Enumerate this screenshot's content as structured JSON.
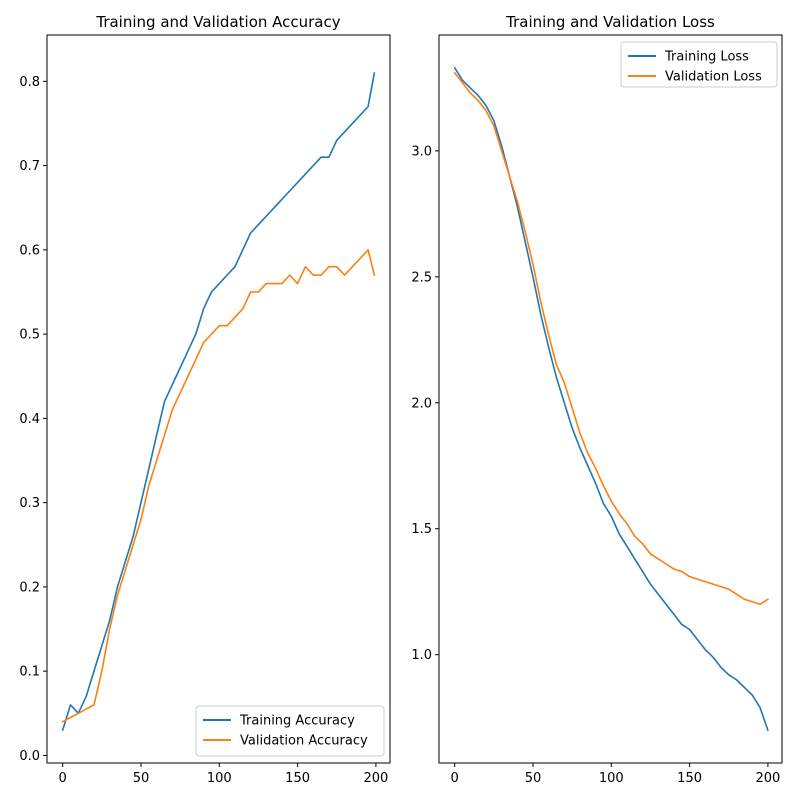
{
  "chart_data": [
    {
      "type": "line",
      "title": "Training and Validation Accuracy",
      "xlabel": "",
      "ylabel": "",
      "xlim": [
        -10,
        209
      ],
      "ylim": [
        -0.009,
        0.855
      ],
      "xticks": [
        0,
        50,
        100,
        150,
        200
      ],
      "yticks": [
        0.0,
        0.1,
        0.2,
        0.3,
        0.4,
        0.5,
        0.6,
        0.7,
        0.8
      ],
      "ytick_format": "1",
      "legend": "lower-right",
      "grid": false,
      "series": [
        {
          "name": "Training Accuracy",
          "color": "#1f77b4",
          "x": [
            0,
            5,
            10,
            15,
            20,
            25,
            30,
            35,
            40,
            45,
            50,
            55,
            60,
            65,
            70,
            75,
            80,
            85,
            90,
            95,
            100,
            105,
            110,
            115,
            120,
            125,
            130,
            135,
            140,
            145,
            150,
            155,
            160,
            165,
            170,
            175,
            180,
            185,
            190,
            195,
            199
          ],
          "y": [
            0.03,
            0.06,
            0.05,
            0.07,
            0.1,
            0.13,
            0.16,
            0.2,
            0.23,
            0.26,
            0.3,
            0.34,
            0.38,
            0.42,
            0.44,
            0.46,
            0.48,
            0.5,
            0.53,
            0.55,
            0.56,
            0.57,
            0.58,
            0.6,
            0.62,
            0.63,
            0.64,
            0.65,
            0.66,
            0.67,
            0.68,
            0.69,
            0.7,
            0.71,
            0.71,
            0.73,
            0.74,
            0.75,
            0.76,
            0.77,
            0.81
          ]
        },
        {
          "name": "Validation Accuracy",
          "color": "#ff7f0e",
          "x": [
            0,
            5,
            10,
            15,
            20,
            25,
            30,
            35,
            40,
            45,
            50,
            55,
            60,
            65,
            70,
            75,
            80,
            85,
            90,
            95,
            100,
            105,
            110,
            115,
            120,
            125,
            130,
            135,
            140,
            145,
            150,
            155,
            160,
            165,
            170,
            175,
            180,
            185,
            190,
            195,
            199
          ],
          "y": [
            0.04,
            0.045,
            0.05,
            0.055,
            0.06,
            0.1,
            0.15,
            0.19,
            0.22,
            0.25,
            0.28,
            0.32,
            0.35,
            0.38,
            0.41,
            0.43,
            0.45,
            0.47,
            0.49,
            0.5,
            0.51,
            0.51,
            0.52,
            0.53,
            0.55,
            0.55,
            0.56,
            0.56,
            0.56,
            0.57,
            0.56,
            0.58,
            0.57,
            0.57,
            0.58,
            0.58,
            0.57,
            0.58,
            0.59,
            0.6,
            0.57
          ]
        }
      ]
    },
    {
      "type": "line",
      "title": "Training and Validation Loss",
      "xlabel": "",
      "ylabel": "",
      "xlim": [
        -10,
        209
      ],
      "ylim": [
        0.57,
        3.46
      ],
      "xticks": [
        0,
        50,
        100,
        150,
        200
      ],
      "yticks": [
        1.0,
        1.5,
        2.0,
        2.5,
        3.0
      ],
      "ytick_format": "1",
      "legend": "top-right",
      "grid": false,
      "series": [
        {
          "name": "Training Loss",
          "color": "#1f77b4",
          "x": [
            0,
            5,
            10,
            15,
            20,
            25,
            30,
            35,
            40,
            45,
            50,
            55,
            60,
            65,
            70,
            75,
            80,
            85,
            90,
            95,
            100,
            105,
            110,
            115,
            120,
            125,
            130,
            135,
            140,
            145,
            150,
            155,
            160,
            165,
            170,
            175,
            180,
            185,
            190,
            195,
            200
          ],
          "y": [
            3.33,
            3.28,
            3.25,
            3.22,
            3.18,
            3.12,
            3.02,
            2.9,
            2.78,
            2.64,
            2.5,
            2.35,
            2.22,
            2.1,
            2.0,
            1.9,
            1.82,
            1.75,
            1.68,
            1.6,
            1.55,
            1.48,
            1.43,
            1.38,
            1.33,
            1.28,
            1.24,
            1.2,
            1.16,
            1.12,
            1.1,
            1.06,
            1.02,
            0.99,
            0.95,
            0.92,
            0.9,
            0.87,
            0.84,
            0.79,
            0.7
          ]
        },
        {
          "name": "Validation Loss",
          "color": "#ff7f0e",
          "x": [
            0,
            5,
            10,
            15,
            20,
            25,
            30,
            35,
            40,
            45,
            50,
            55,
            60,
            65,
            70,
            75,
            80,
            85,
            90,
            95,
            100,
            105,
            110,
            115,
            120,
            125,
            130,
            135,
            140,
            145,
            150,
            155,
            160,
            165,
            170,
            175,
            180,
            185,
            190,
            195,
            200
          ],
          "y": [
            3.31,
            3.27,
            3.23,
            3.2,
            3.16,
            3.1,
            3.0,
            2.9,
            2.8,
            2.68,
            2.55,
            2.4,
            2.27,
            2.15,
            2.08,
            1.98,
            1.88,
            1.8,
            1.74,
            1.67,
            1.61,
            1.56,
            1.52,
            1.47,
            1.44,
            1.4,
            1.38,
            1.36,
            1.34,
            1.33,
            1.31,
            1.3,
            1.29,
            1.28,
            1.27,
            1.26,
            1.24,
            1.22,
            1.21,
            1.2,
            1.22
          ]
        }
      ]
    }
  ]
}
